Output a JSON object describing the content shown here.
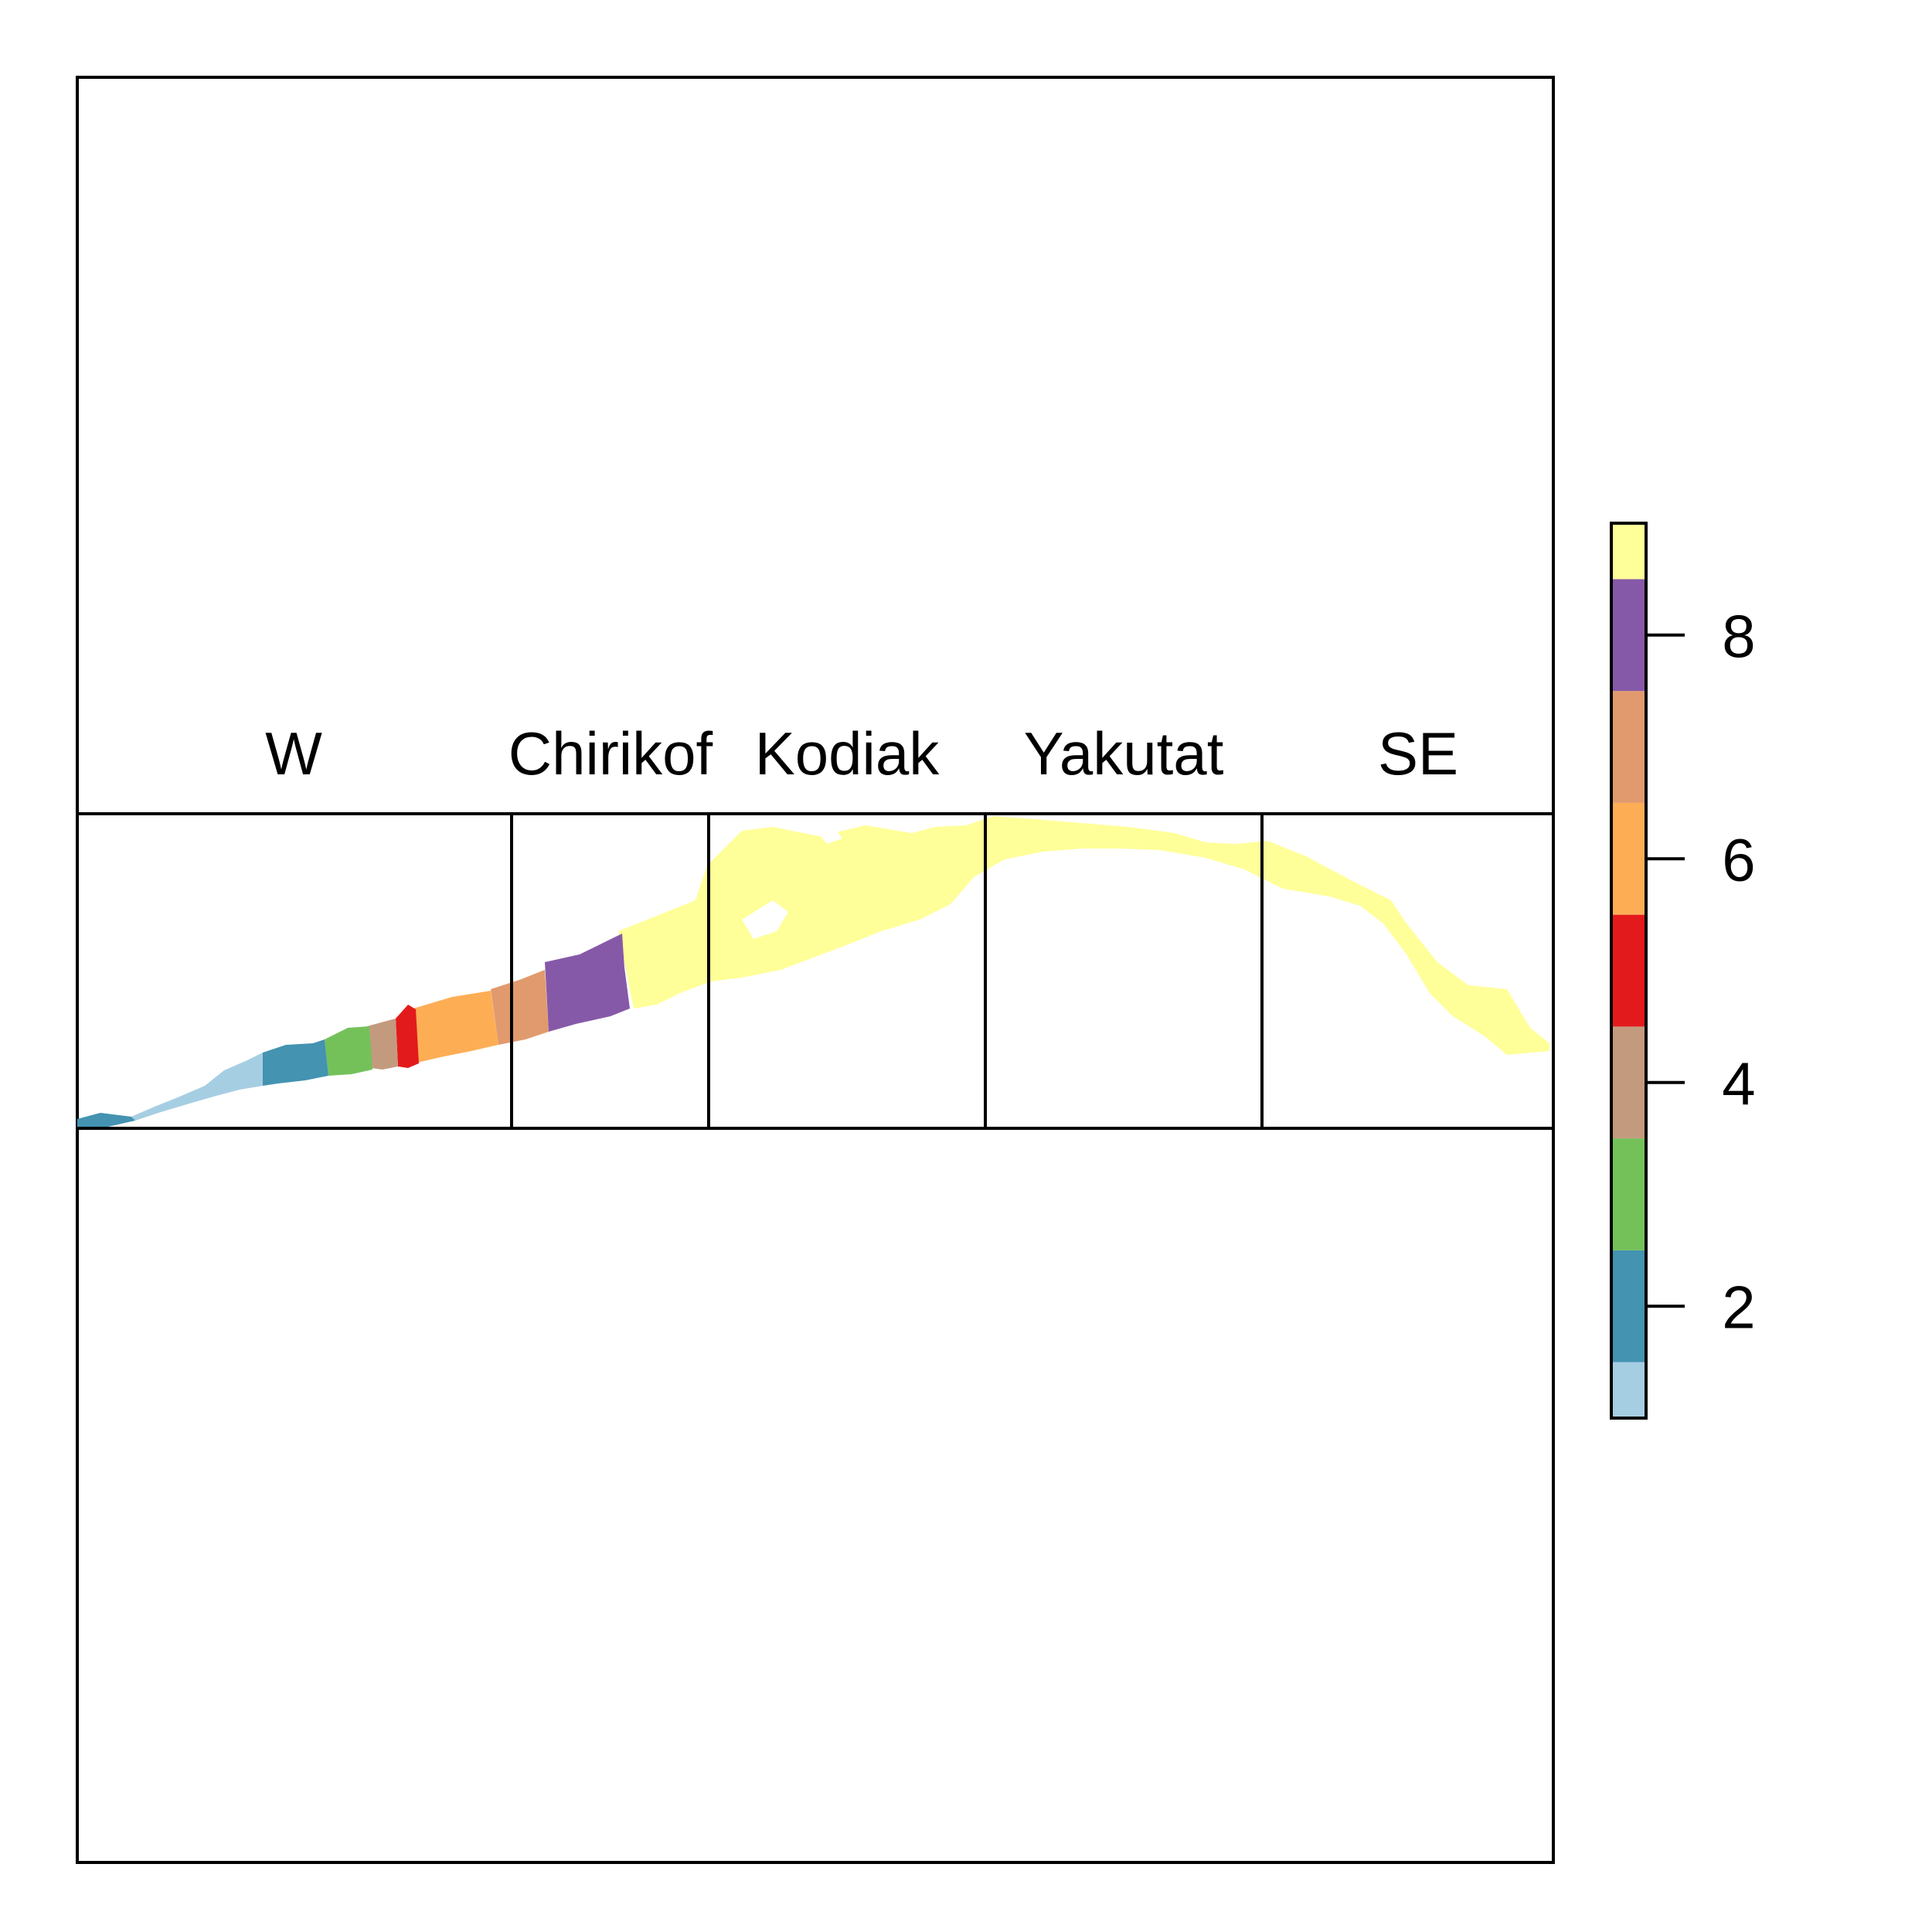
{
  "regions": [
    {
      "label": "W"
    },
    {
      "label": "Chirikof"
    },
    {
      "label": "Kodiak"
    },
    {
      "label": "Yakutat"
    },
    {
      "label": "SE"
    }
  ],
  "legend": {
    "min": 1,
    "max": 9,
    "ticks": [
      "2",
      "4",
      "6",
      "8"
    ],
    "colors": [
      "#a6cee3",
      "#4393b1",
      "#74c15a",
      "#c49a7e",
      "#e31a1c",
      "#fdae55",
      "#e19a6d",
      "#8659a8",
      "#ffff99"
    ]
  },
  "strata": [
    {
      "value": 1,
      "color": "#a6cee3"
    },
    {
      "value": 2,
      "color": "#4393b1"
    },
    {
      "value": 3,
      "color": "#74c15a"
    },
    {
      "value": 4,
      "color": "#c49a7e"
    },
    {
      "value": 5,
      "color": "#e31a1c"
    },
    {
      "value": 6,
      "color": "#fdae55"
    },
    {
      "value": 7,
      "color": "#e19a6d"
    },
    {
      "value": 8,
      "color": "#8659a8"
    },
    {
      "value": 9,
      "color": "#ffff99"
    }
  ]
}
